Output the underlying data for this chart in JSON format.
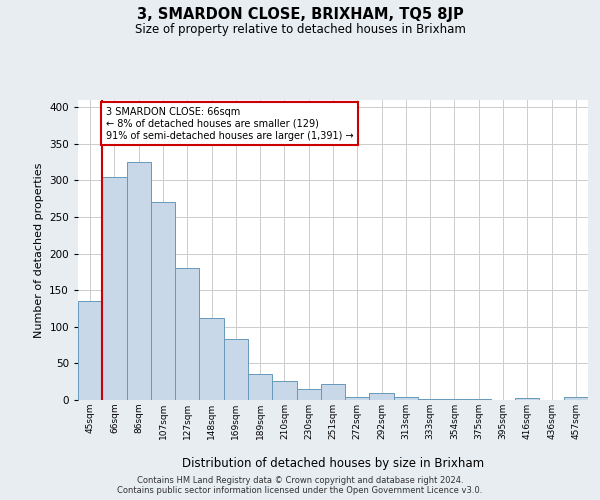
{
  "title": "3, SMARDON CLOSE, BRIXHAM, TQ5 8JP",
  "subtitle": "Size of property relative to detached houses in Brixham",
  "xlabel": "Distribution of detached houses by size in Brixham",
  "ylabel": "Number of detached properties",
  "bar_labels": [
    "45sqm",
    "66sqm",
    "86sqm",
    "107sqm",
    "127sqm",
    "148sqm",
    "169sqm",
    "189sqm",
    "210sqm",
    "230sqm",
    "251sqm",
    "272sqm",
    "292sqm",
    "313sqm",
    "333sqm",
    "354sqm",
    "375sqm",
    "395sqm",
    "416sqm",
    "436sqm",
    "457sqm"
  ],
  "bar_values": [
    135,
    305,
    325,
    270,
    180,
    112,
    83,
    36,
    26,
    15,
    22,
    4,
    10,
    4,
    1,
    2,
    1,
    0,
    3,
    0,
    4
  ],
  "bar_color": "#c8d8e8",
  "bar_edgecolor": "#6699bb",
  "vline_x": 1,
  "vline_color": "#cc0000",
  "annotation_line1": "3 SMARDON CLOSE: 66sqm",
  "annotation_line2": "← 8% of detached houses are smaller (129)",
  "annotation_line3": "91% of semi-detached houses are larger (1,391) →",
  "annotation_box_edgecolor": "#cc0000",
  "annotation_box_facecolor": "#ffffff",
  "ylim": [
    0,
    410
  ],
  "yticks": [
    0,
    50,
    100,
    150,
    200,
    250,
    300,
    350,
    400
  ],
  "footnote1": "Contains HM Land Registry data © Crown copyright and database right 2024.",
  "footnote2": "Contains public sector information licensed under the Open Government Licence v3.0.",
  "bg_color": "#e8edf2",
  "plot_bg_color": "#ffffff",
  "grid_color": "#cccccc"
}
